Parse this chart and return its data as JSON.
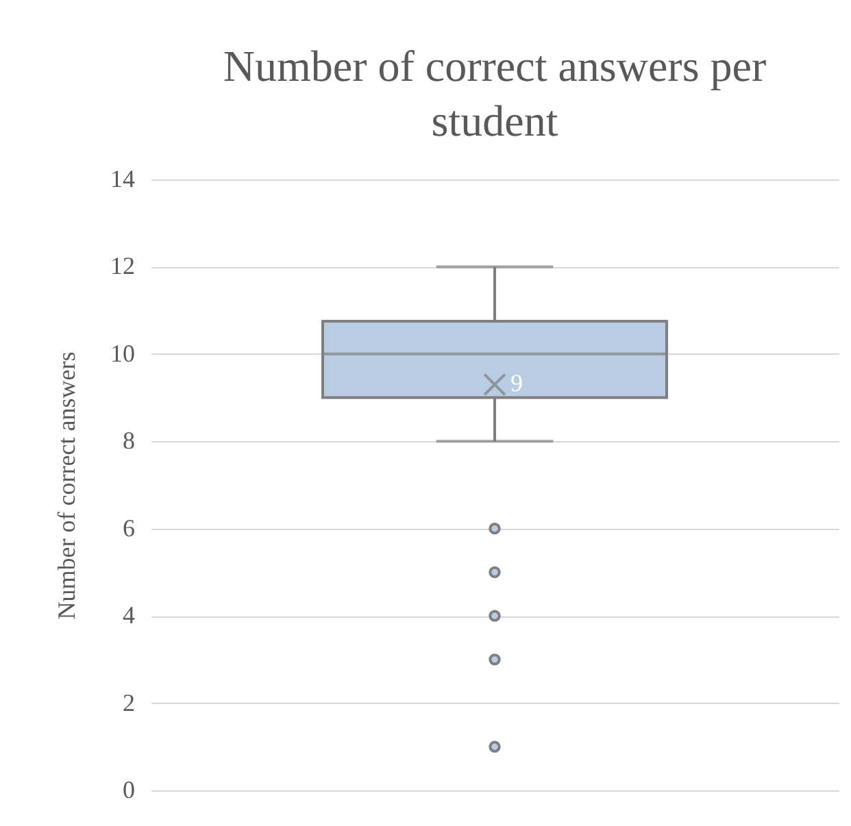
{
  "chart_data": {
    "type": "box",
    "title": "Number of correct answers per student",
    "ylabel": "Number of correct answers",
    "categories": [
      null
    ],
    "boxes": [
      {
        "low": 8,
        "q1": 9,
        "median": 10,
        "q3": 10.75,
        "high": 12,
        "mean": 9.3,
        "outliers": [
          6,
          5,
          4,
          3,
          1
        ]
      }
    ],
    "color": "#b8cce4",
    "ylim": [
      0,
      14
    ],
    "yticks": [
      0,
      2,
      4,
      6,
      8,
      10,
      12,
      14
    ],
    "grid": "y",
    "tick_labels": "y",
    "annotations": [
      "9"
    ]
  }
}
